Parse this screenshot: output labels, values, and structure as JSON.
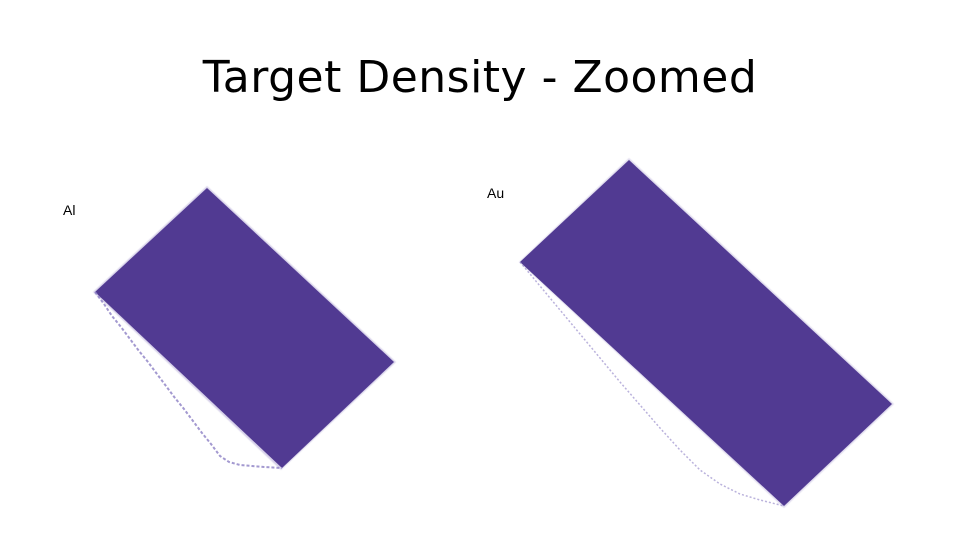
{
  "slide": {
    "title": "Target Density - Zoomed"
  },
  "panels": [
    {
      "label": "Al",
      "fill_color": "#513a92"
    },
    {
      "label": "Au",
      "fill_color": "#513a92"
    }
  ]
}
